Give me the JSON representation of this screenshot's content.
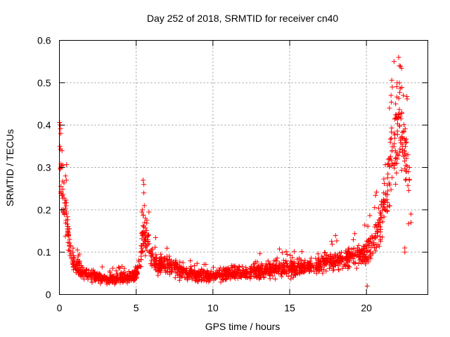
{
  "chart_data": {
    "type": "scatter",
    "title": "Day 252 of 2018, SRMTID for receiver cn40",
    "xlabel": "GPS time / hours",
    "ylabel": "SRMTID / TECUs",
    "xlim": [
      0,
      24
    ],
    "ylim": [
      0,
      0.6
    ],
    "x_ticks": [
      0,
      5,
      10,
      15,
      20
    ],
    "x_tick_labels": [
      "0",
      "5",
      "10",
      "15",
      "20"
    ],
    "y_ticks": [
      0,
      0.1,
      0.2,
      0.3,
      0.4,
      0.5,
      0.6
    ],
    "y_tick_labels": [
      "0",
      "0.1",
      "0.2",
      "0.3",
      "0.4",
      "0.5",
      "0.6"
    ],
    "grid": true,
    "marker": "plus",
    "color": "#ff0000",
    "series": [
      {
        "name": "cn40",
        "profile": [
          {
            "x": 0.0,
            "y": 0.34
          },
          {
            "x": 0.1,
            "y": 0.3
          },
          {
            "x": 0.2,
            "y": 0.25
          },
          {
            "x": 0.4,
            "y": 0.2
          },
          {
            "x": 0.6,
            "y": 0.13
          },
          {
            "x": 0.8,
            "y": 0.09
          },
          {
            "x": 1.0,
            "y": 0.07
          },
          {
            "x": 1.5,
            "y": 0.05
          },
          {
            "x": 2.0,
            "y": 0.045
          },
          {
            "x": 3.0,
            "y": 0.035
          },
          {
            "x": 4.0,
            "y": 0.04
          },
          {
            "x": 5.0,
            "y": 0.045
          },
          {
            "x": 5.3,
            "y": 0.09
          },
          {
            "x": 5.5,
            "y": 0.15
          },
          {
            "x": 5.8,
            "y": 0.12
          },
          {
            "x": 6.0,
            "y": 0.08
          },
          {
            "x": 6.5,
            "y": 0.07
          },
          {
            "x": 7.0,
            "y": 0.07
          },
          {
            "x": 8.0,
            "y": 0.055
          },
          {
            "x": 9.0,
            "y": 0.045
          },
          {
            "x": 10.0,
            "y": 0.045
          },
          {
            "x": 11.0,
            "y": 0.05
          },
          {
            "x": 12.0,
            "y": 0.05
          },
          {
            "x": 13.0,
            "y": 0.055
          },
          {
            "x": 14.0,
            "y": 0.06
          },
          {
            "x": 15.0,
            "y": 0.06
          },
          {
            "x": 16.0,
            "y": 0.065
          },
          {
            "x": 17.0,
            "y": 0.07
          },
          {
            "x": 18.0,
            "y": 0.08
          },
          {
            "x": 19.0,
            "y": 0.09
          },
          {
            "x": 20.0,
            "y": 0.1
          },
          {
            "x": 20.5,
            "y": 0.12
          },
          {
            "x": 21.0,
            "y": 0.18
          },
          {
            "x": 21.5,
            "y": 0.28
          },
          {
            "x": 22.0,
            "y": 0.38
          },
          {
            "x": 22.3,
            "y": 0.4
          },
          {
            "x": 22.6,
            "y": 0.28
          },
          {
            "x": 22.8,
            "y": 0.25
          }
        ],
        "highlights": [
          {
            "x": 0.05,
            "y": 0.4
          },
          {
            "x": 0.08,
            "y": 0.38
          },
          {
            "x": 0.03,
            "y": 0.35
          },
          {
            "x": 0.4,
            "y": 0.28
          },
          {
            "x": 0.45,
            "y": 0.27
          },
          {
            "x": 5.45,
            "y": 0.27
          },
          {
            "x": 5.5,
            "y": 0.26
          },
          {
            "x": 5.5,
            "y": 0.24
          },
          {
            "x": 5.4,
            "y": 0.2
          },
          {
            "x": 5.6,
            "y": 0.18
          },
          {
            "x": 21.8,
            "y": 0.55
          },
          {
            "x": 22.1,
            "y": 0.56
          },
          {
            "x": 22.15,
            "y": 0.54
          },
          {
            "x": 22.0,
            "y": 0.5
          },
          {
            "x": 21.6,
            "y": 0.47
          },
          {
            "x": 22.4,
            "y": 0.47
          },
          {
            "x": 21.9,
            "y": 0.45
          },
          {
            "x": 22.3,
            "y": 0.43
          },
          {
            "x": 21.5,
            "y": 0.44
          },
          {
            "x": 22.2,
            "y": 0.42
          },
          {
            "x": 22.6,
            "y": 0.36
          },
          {
            "x": 22.7,
            "y": 0.33
          },
          {
            "x": 22.8,
            "y": 0.3
          },
          {
            "x": 22.8,
            "y": 0.27
          },
          {
            "x": 22.9,
            "y": 0.19
          },
          {
            "x": 22.9,
            "y": 0.17
          },
          {
            "x": 22.5,
            "y": 0.11
          },
          {
            "x": 22.5,
            "y": 0.1
          },
          {
            "x": 20.9,
            "y": 0.16
          },
          {
            "x": 20.05,
            "y": 0.02
          }
        ]
      }
    ]
  }
}
